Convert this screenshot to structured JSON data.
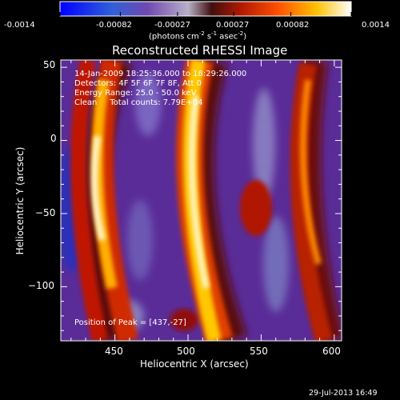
{
  "colorbar": {
    "ticks": [
      "-0.0014",
      "-0.00082",
      "-0.00027",
      "0.00027",
      "0.00082",
      "0.0014"
    ],
    "units_text": "(photons cm",
    "units_sup1": "-2",
    "units_mid": " s",
    "units_sup2": "-1",
    "units_end": " asec",
    "units_sup3": "-2",
    "units_close": ")",
    "range": [
      -0.0014,
      0.0014
    ],
    "colors": [
      "#0000ff",
      "#3a6bd6",
      "#7e58b8",
      "#c8c0d0",
      "#6a1a10",
      "#cc2a00",
      "#ff7a00",
      "#ffd800",
      "#ffffff"
    ]
  },
  "chart_data": {
    "type": "heatmap",
    "title": "Reconstructed RHESSI Image",
    "xlabel": "Heliocentric X (arcsec)",
    "ylabel": "Heliocentric Y (arcsec)",
    "xlim": [
      413,
      605
    ],
    "ylim": [
      -137,
      55
    ],
    "xticks": [
      450,
      500,
      550,
      600
    ],
    "yticks": [
      50,
      0,
      -50,
      -100
    ],
    "xtick_labels": [
      "450",
      "500",
      "550",
      "600"
    ],
    "ytick_labels": [
      "50",
      "0",
      "−50",
      "−100"
    ],
    "annotations": [
      "14-Jan-2009 18:25:36.000 to 18:29:26.000",
      "Detectors: 4F 5F 6F 7F 8F, Att 0",
      "Energy Range: 25.0 - 50.0 keV",
      "Clean     Total counts: 7.79E+04",
      "Position of Peak = [437,-27]"
    ],
    "peak": [
      437,
      -27
    ],
    "units": "photons cm^-2 s^-1 asec^-2"
  },
  "footer": {
    "timestamp": "29-Jul-2013 16:49"
  }
}
